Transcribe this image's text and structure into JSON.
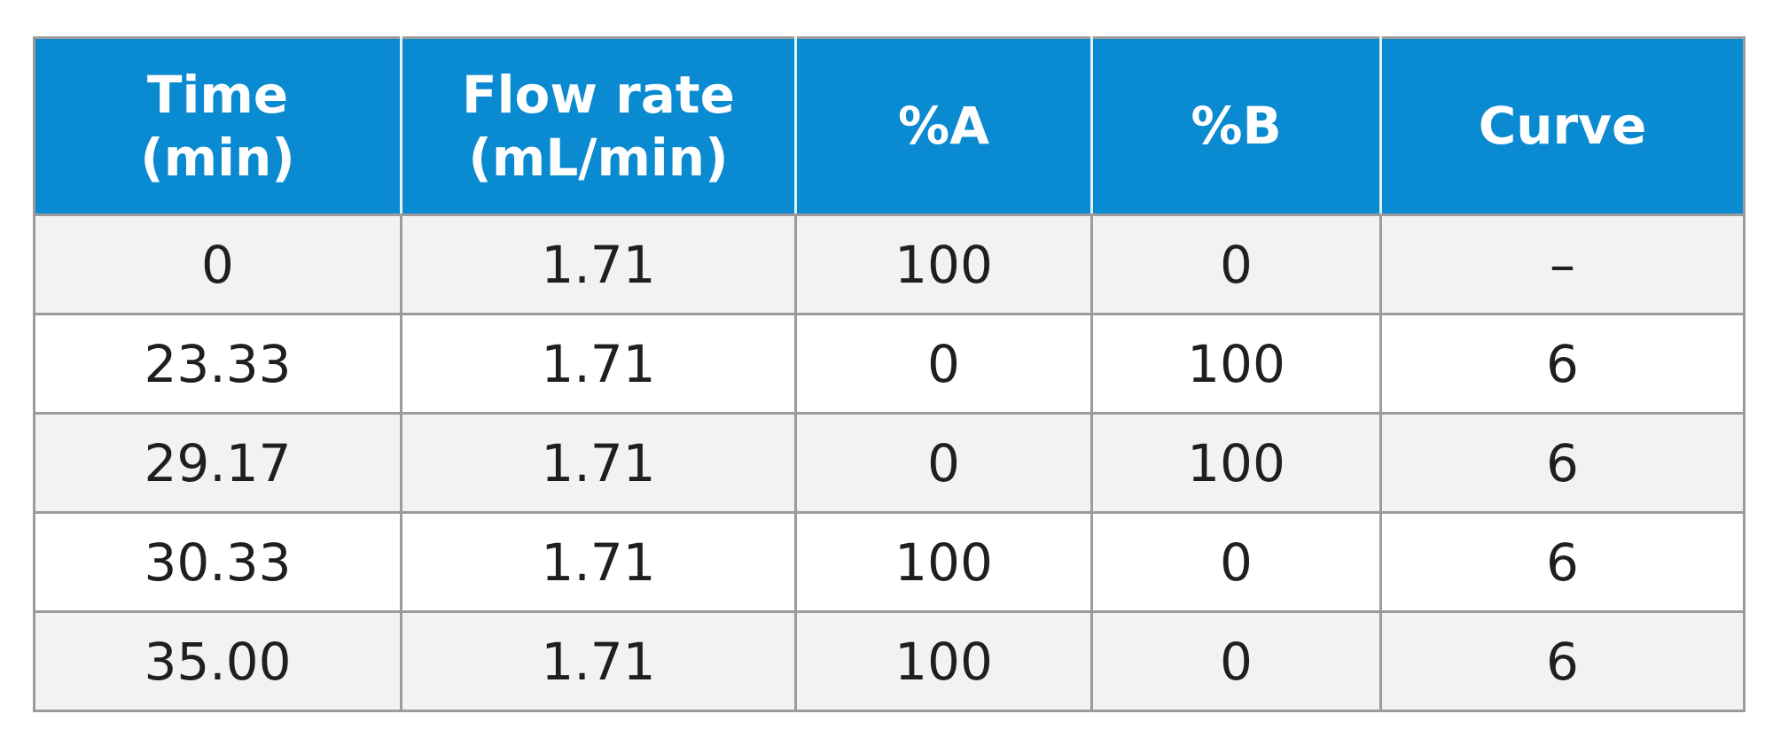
{
  "table": {
    "headers": [
      {
        "line1": "Time",
        "line2": "(min)"
      },
      {
        "line1": "Flow rate",
        "line2": "(mL/min)"
      },
      {
        "line1": "%A",
        "line2": ""
      },
      {
        "line1": "%B",
        "line2": ""
      },
      {
        "line1": "Curve",
        "line2": ""
      }
    ],
    "rows": [
      [
        "0",
        "1.71",
        "100",
        "0",
        "–"
      ],
      [
        "23.33",
        "1.71",
        "0",
        "100",
        "6"
      ],
      [
        "29.17",
        "1.71",
        "0",
        "100",
        "6"
      ],
      [
        "30.33",
        "1.71",
        "100",
        "0",
        "6"
      ],
      [
        "35.00",
        "1.71",
        "100",
        "0",
        "6"
      ]
    ]
  },
  "colors": {
    "header_bg": "#0a8ad0",
    "header_text": "#ffffff",
    "shaded_row": "#f2f2f4",
    "plain_row": "#ffffff",
    "border": "#9b9b9b",
    "cell_text": "#1f1f1f"
  }
}
